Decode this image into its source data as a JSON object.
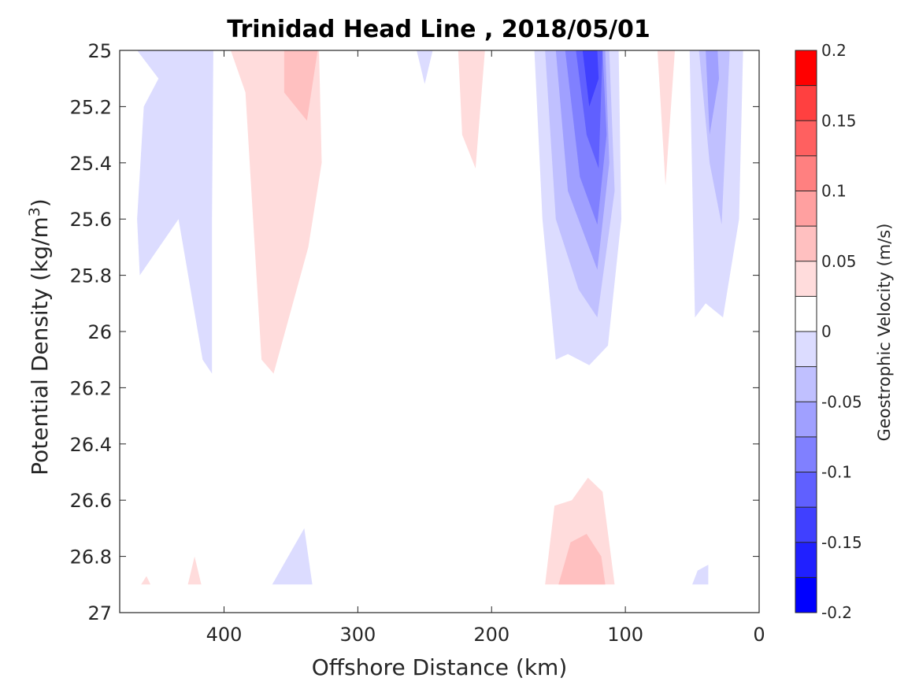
{
  "chart_data": {
    "type": "contour",
    "title": "Trinidad Head Line , 2018/05/01",
    "xlabel": "Offshore Distance (km)",
    "ylabel_main": "Potential Density (kg/m",
    "ylabel_sup": "3",
    "ylabel_end": ")",
    "x_axis": {
      "min": 0,
      "max": 478,
      "reversed": true,
      "ticks": [
        400,
        300,
        200,
        100,
        0
      ],
      "tick_labels": [
        "400",
        "300",
        "200",
        "100",
        "0"
      ]
    },
    "y_axis": {
      "min": 25,
      "max": 27,
      "reversed": true,
      "ticks": [
        25,
        25.2,
        25.4,
        25.6,
        25.8,
        26,
        26.2,
        26.4,
        26.6,
        26.8,
        27
      ],
      "tick_labels": [
        "25",
        "25.2",
        "25.4",
        "25.6",
        "25.8",
        "26",
        "26.2",
        "26.4",
        "26.6",
        "26.8",
        "27"
      ]
    },
    "colorbar": {
      "label": "Geostrophic Velocity (m/s)",
      "min": -0.2,
      "max": 0.2,
      "levels": [
        -0.2,
        -0.175,
        -0.15,
        -0.125,
        -0.1,
        -0.075,
        -0.05,
        -0.025,
        0,
        0.025,
        0.05,
        0.075,
        0.1,
        0.125,
        0.15,
        0.175,
        0.2
      ],
      "colors": [
        "#0000ff",
        "#2020ff",
        "#4040ff",
        "#6060ff",
        "#8080ff",
        "#a0a0ff",
        "#c0c0ff",
        "#dcdcff",
        "#ffffff",
        "#ffffff",
        "#ffdcdc",
        "#ffc0c0",
        "#ffa0a0",
        "#ff8080",
        "#ff6060",
        "#ff4040",
        "#ff0000"
      ],
      "tick_values": [
        0.2,
        0.15,
        0.1,
        0.05,
        0,
        -0.05,
        -0.1,
        -0.15,
        -0.2
      ],
      "tick_labels": [
        "0.2",
        "0.15",
        "0.1",
        "0.05",
        "0",
        "-0.05",
        "-0.1",
        "-0.15",
        "-0.2"
      ]
    },
    "regions": [
      {
        "name": "offshore-jet-outer",
        "value": -0.04,
        "color": "#dcdcff",
        "points": [
          [
            465,
            25.0
          ],
          [
            449,
            25.1
          ],
          [
            460,
            25.2
          ],
          [
            465,
            25.6
          ],
          [
            463,
            25.8
          ],
          [
            434,
            25.6
          ],
          [
            416,
            26.1
          ],
          [
            409,
            26.15
          ],
          [
            409,
            25.6
          ],
          [
            408,
            25.0
          ]
        ]
      },
      {
        "name": "offshore-pos-outer",
        "value": 0.04,
        "color": "#ffdcdc",
        "points": [
          [
            395,
            25.0
          ],
          [
            384,
            25.15
          ],
          [
            372,
            26.1
          ],
          [
            363,
            26.15
          ],
          [
            337,
            25.7
          ],
          [
            327,
            25.4
          ],
          [
            329,
            25.0
          ]
        ]
      },
      {
        "name": "offshore-pos-inner",
        "value": 0.065,
        "color": "#ffc0c0",
        "points": [
          [
            355,
            25.0
          ],
          [
            355,
            25.15
          ],
          [
            338,
            25.25
          ],
          [
            330,
            25.0
          ]
        ]
      },
      {
        "name": "small-neg-250",
        "value": -0.03,
        "color": "#dcdcff",
        "points": [
          [
            256,
            25.0
          ],
          [
            250,
            25.12
          ],
          [
            244,
            25.0
          ]
        ]
      },
      {
        "name": "small-pos-210",
        "value": 0.03,
        "color": "#ffdcdc",
        "points": [
          [
            225,
            25.0
          ],
          [
            222,
            25.3
          ],
          [
            212,
            25.42
          ],
          [
            205,
            25.0
          ]
        ]
      },
      {
        "name": "core-jet-l1",
        "value": -0.04,
        "color": "#dcdcff",
        "points": [
          [
            168,
            25.0
          ],
          [
            162,
            25.6
          ],
          [
            152,
            26.1
          ],
          [
            143,
            26.08
          ],
          [
            127,
            26.12
          ],
          [
            113,
            26.05
          ],
          [
            103,
            25.6
          ],
          [
            105,
            25.0
          ]
        ]
      },
      {
        "name": "core-jet-l2",
        "value": -0.06,
        "color": "#c0c0ff",
        "points": [
          [
            160,
            25.0
          ],
          [
            152,
            25.6
          ],
          [
            135,
            25.85
          ],
          [
            121,
            25.95
          ],
          [
            108,
            25.5
          ],
          [
            112,
            25.0
          ]
        ]
      },
      {
        "name": "core-jet-l3",
        "value": -0.085,
        "color": "#a0a0ff",
        "points": [
          [
            152,
            25.0
          ],
          [
            143,
            25.5
          ],
          [
            121,
            25.78
          ],
          [
            112,
            25.4
          ],
          [
            115,
            25.0
          ]
        ]
      },
      {
        "name": "core-jet-l4",
        "value": -0.11,
        "color": "#8080ff",
        "points": [
          [
            145,
            25.0
          ],
          [
            134,
            25.45
          ],
          [
            121,
            25.62
          ],
          [
            114,
            25.3
          ],
          [
            117,
            25.0
          ]
        ]
      },
      {
        "name": "core-jet-l5",
        "value": -0.135,
        "color": "#6060ff",
        "points": [
          [
            137,
            25.0
          ],
          [
            129,
            25.3
          ],
          [
            120,
            25.42
          ],
          [
            117,
            25.0
          ]
        ]
      },
      {
        "name": "core-jet-l6",
        "value": -0.16,
        "color": "#4040ff",
        "points": [
          [
            132,
            25.0
          ],
          [
            127,
            25.2
          ],
          [
            120,
            25.1
          ],
          [
            121,
            25.0
          ]
        ]
      },
      {
        "name": "small-pos-70",
        "value": 0.03,
        "color": "#ffdcdc",
        "points": [
          [
            76,
            25.0
          ],
          [
            70,
            25.48
          ],
          [
            63,
            25.0
          ]
        ]
      },
      {
        "name": "nearshore-neg-l1",
        "value": -0.04,
        "color": "#dcdcff",
        "points": [
          [
            52,
            25.0
          ],
          [
            48,
            25.95
          ],
          [
            40,
            25.9
          ],
          [
            27,
            25.95
          ],
          [
            15,
            25.6
          ],
          [
            12,
            25.0
          ]
        ]
      },
      {
        "name": "nearshore-neg-l2",
        "value": -0.06,
        "color": "#c0c0ff",
        "points": [
          [
            45,
            25.0
          ],
          [
            37,
            25.4
          ],
          [
            28,
            25.62
          ],
          [
            22,
            25.0
          ]
        ]
      },
      {
        "name": "nearshore-neg-l3",
        "value": -0.085,
        "color": "#a0a0ff",
        "points": [
          [
            40,
            25.0
          ],
          [
            37,
            25.3
          ],
          [
            30,
            25.1
          ],
          [
            31,
            25.0
          ]
        ]
      },
      {
        "name": "deep-neg-350",
        "value": -0.03,
        "color": "#dcdcff",
        "points": [
          [
            364,
            26.9
          ],
          [
            346,
            26.75
          ],
          [
            340,
            26.7
          ],
          [
            334,
            26.9
          ]
        ]
      },
      {
        "name": "deep-pos-460",
        "value": 0.03,
        "color": "#ffdcdc",
        "points": [
          [
            462,
            26.9
          ],
          [
            458,
            26.87
          ],
          [
            455,
            26.9
          ]
        ]
      },
      {
        "name": "deep-pos-425",
        "value": 0.03,
        "color": "#ffdcdc",
        "points": [
          [
            427,
            26.9
          ],
          [
            422,
            26.8
          ],
          [
            417,
            26.9
          ]
        ]
      },
      {
        "name": "deep-pos-130-outer",
        "value": 0.04,
        "color": "#ffdcdc",
        "points": [
          [
            160,
            26.9
          ],
          [
            153,
            26.62
          ],
          [
            140,
            26.6
          ],
          [
            128,
            26.52
          ],
          [
            117,
            26.57
          ],
          [
            108,
            26.9
          ]
        ]
      },
      {
        "name": "deep-pos-130-inner",
        "value": 0.065,
        "color": "#ffc0c0",
        "points": [
          [
            150,
            26.9
          ],
          [
            141,
            26.75
          ],
          [
            129,
            26.72
          ],
          [
            118,
            26.8
          ],
          [
            115,
            26.9
          ]
        ]
      },
      {
        "name": "deep-neg-45",
        "value": -0.03,
        "color": "#dcdcff",
        "points": [
          [
            50,
            26.9
          ],
          [
            46,
            26.85
          ],
          [
            38,
            26.83
          ],
          [
            38,
            26.9
          ]
        ]
      }
    ]
  }
}
